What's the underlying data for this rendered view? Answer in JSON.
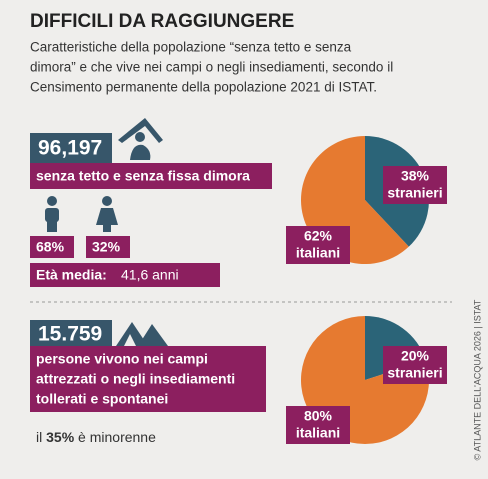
{
  "header": {
    "title": "DIFFICILI DA RAGGIUNGERE",
    "subtitle": [
      "Caratteristiche della popolazione “senza tetto e senza",
      "dimora” e che vive nei campi o negli insediamenti, secondo il",
      "Censimento permanente della popolazione 2021 di ISTAT."
    ]
  },
  "homeless": {
    "count": "96,197",
    "label": "senza tetto e senza fissa dimora",
    "men": "68%",
    "women": "32%",
    "age_label": "Età media:",
    "age_value": "41,6 anni"
  },
  "camps": {
    "count": "15.759",
    "label": [
      "persone vivono nei campi",
      "attrezzati o negli insediamenti",
      "tollerati e spontanei"
    ],
    "minor_pre": "il",
    "minor_value": "35%",
    "minor_post": "è minorenne"
  },
  "credit": "© ATLANTE DELL'ACQUA 2026 | ISTAT",
  "chart_data": [
    {
      "type": "pie",
      "categories": [
        "stranieri",
        "italiani"
      ],
      "values": [
        38,
        62
      ],
      "value_labels": [
        "38%",
        "62%"
      ],
      "colors": [
        "#2b6478",
        "#e67a30"
      ]
    },
    {
      "type": "pie",
      "categories": [
        "stranieri",
        "italiani"
      ],
      "values": [
        20,
        80
      ],
      "value_labels": [
        "20%",
        "80%"
      ],
      "colors": [
        "#2b6478",
        "#e67a30"
      ]
    }
  ]
}
